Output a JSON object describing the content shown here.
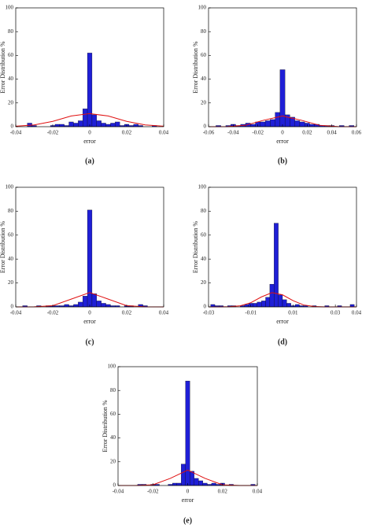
{
  "chart_data": [
    {
      "type": "histogram",
      "caption": "(a)",
      "xlabel": "error",
      "ylabel": "Error Distribution %",
      "color": "#1f1fd6",
      "bins": [
        -0.03625,
        -0.03375,
        -0.03125,
        -0.02875,
        -0.02625,
        -0.02375,
        -0.02125,
        -0.01875,
        -0.01625,
        -0.01375,
        -0.01125,
        -0.00875,
        -0.00625,
        -0.00375,
        -0.00125,
        0.00125,
        0.00375,
        0.00625,
        0.00875,
        0.01125,
        0.01375,
        0.01625,
        0.01875,
        0.02125,
        0.02375,
        0.02625,
        0.02875,
        0.03125,
        0.03375,
        0.03625,
        0.03875
      ],
      "values": [
        0,
        3,
        1,
        0,
        0,
        0,
        1,
        2,
        2,
        1,
        4,
        3,
        5,
        15,
        62,
        10,
        5,
        3,
        2,
        3,
        4,
        1,
        2,
        1,
        2,
        1,
        0,
        0,
        1,
        0
      ],
      "curve": {
        "x": [
          -0.04,
          -0.03,
          -0.02,
          -0.01,
          0,
          0.01,
          0.02,
          0.03,
          0.04
        ],
        "values": [
          0.4,
          1.5,
          4.5,
          9,
          11,
          9,
          4.5,
          1.5,
          0.4
        ],
        "color": "#e01010"
      },
      "xlim": [
        -0.04,
        0.04
      ],
      "ylim": [
        0,
        100
      ],
      "xticks": [
        -0.04,
        -0.02,
        0,
        0.02,
        0.04
      ],
      "yticks": [
        0,
        20,
        40,
        60,
        80,
        100
      ]
    },
    {
      "type": "histogram",
      "caption": "(b)",
      "xlabel": "error",
      "ylabel": "Error Distribution %",
      "color": "#1f1fd6",
      "bins": [
        -0.054,
        -0.05,
        -0.046,
        -0.042,
        -0.038,
        -0.034,
        -0.03,
        -0.026,
        -0.022,
        -0.018,
        -0.014,
        -0.01,
        -0.006,
        -0.002,
        0.002,
        0.006,
        0.01,
        0.014,
        0.018,
        0.022,
        0.026,
        0.03,
        0.034,
        0.038,
        0.042,
        0.046,
        0.05,
        0.054,
        0.058
      ],
      "values": [
        1,
        0,
        1,
        2,
        1,
        2,
        3,
        2,
        4,
        4,
        5,
        6,
        12,
        48,
        10,
        8,
        5,
        4,
        3,
        2,
        2,
        1,
        1,
        1,
        0,
        1,
        0,
        1
      ],
      "curve": {
        "x": [
          -0.06,
          -0.045,
          -0.03,
          -0.015,
          0,
          0.015,
          0.03,
          0.045,
          0.06
        ],
        "values": [
          0,
          0.1,
          1.2,
          5.5,
          9,
          5.5,
          1.2,
          0.1,
          0
        ],
        "color": "#e01010"
      },
      "xlim": [
        -0.06,
        0.06
      ],
      "ylim": [
        0,
        100
      ],
      "xticks": [
        -0.06,
        -0.04,
        -0.02,
        0,
        0.02,
        0.04,
        0.06
      ],
      "yticks": [
        0,
        20,
        40,
        60,
        80,
        100
      ]
    },
    {
      "type": "histogram",
      "caption": "(c)",
      "xlabel": "error",
      "ylabel": "Error Distribution %",
      "color": "#1f1fd6",
      "bins": [
        -0.03625,
        -0.03375,
        -0.03125,
        -0.02875,
        -0.02625,
        -0.02375,
        -0.02125,
        -0.01875,
        -0.01625,
        -0.01375,
        -0.01125,
        -0.00875,
        -0.00625,
        -0.00375,
        -0.00125,
        0.00125,
        0.00375,
        0.00625,
        0.00875,
        0.01125,
        0.01375,
        0.01625,
        0.01875,
        0.02125,
        0.02375,
        0.02625,
        0.02875,
        0.03125,
        0.03375,
        0.03625,
        0.03875
      ],
      "values": [
        1,
        0,
        0,
        1,
        0,
        1,
        1,
        1,
        1,
        2,
        1,
        2,
        4,
        9,
        81,
        11,
        5,
        3,
        2,
        1,
        1,
        0,
        1,
        1,
        0,
        2,
        1,
        0,
        0,
        0
      ],
      "curve": {
        "x": [
          -0.04,
          -0.03,
          -0.02,
          -0.01,
          0,
          0.01,
          0.02,
          0.03,
          0.04
        ],
        "values": [
          0,
          0.05,
          1,
          6.5,
          12,
          6.5,
          1,
          0.05,
          0
        ],
        "color": "#e01010"
      },
      "xlim": [
        -0.04,
        0.04
      ],
      "ylim": [
        0,
        100
      ],
      "xticks": [
        -0.04,
        -0.02,
        0,
        0.02,
        0.04
      ],
      "yticks": [
        0,
        20,
        40,
        60,
        80,
        100
      ]
    },
    {
      "type": "histogram",
      "caption": "(d)",
      "xlabel": "error",
      "ylabel": "Error Distribution %",
      "color": "#1f1fd6",
      "bins": [
        -0.029,
        -0.027,
        -0.025,
        -0.023,
        -0.021,
        -0.019,
        -0.017,
        -0.015,
        -0.013,
        -0.011,
        -0.009,
        -0.007,
        -0.005,
        -0.003,
        -0.001,
        0.001,
        0.003,
        0.005,
        0.007,
        0.009,
        0.011,
        0.013,
        0.015,
        0.017,
        0.019,
        0.021,
        0.023,
        0.025,
        0.027,
        0.029,
        0.031,
        0.033,
        0.035,
        0.037,
        0.039
      ],
      "values": [
        2,
        1,
        1,
        0,
        1,
        1,
        0,
        1,
        2,
        3,
        3,
        4,
        5,
        8,
        19,
        70,
        10,
        6,
        3,
        1,
        2,
        1,
        1,
        0,
        1,
        0,
        0,
        1,
        0,
        0,
        1,
        0,
        0,
        2
      ],
      "curve": {
        "x": [
          -0.03,
          -0.025,
          -0.02,
          -0.015,
          -0.01,
          -0.005,
          0,
          0.005,
          0.01,
          0.015,
          0.02,
          0.025,
          0.03,
          0.035,
          0.04
        ],
        "values": [
          0,
          0.01,
          0.13,
          0.88,
          3.5,
          8.3,
          11.9,
          10.1,
          5.2,
          1.6,
          0.3,
          0.03,
          0,
          0,
          0
        ],
        "color": "#e01010"
      },
      "xlim": [
        -0.03,
        0.04
      ],
      "ylim": [
        0,
        100
      ],
      "xticks": [
        -0.03,
        -0.01,
        0.01,
        0.03,
        0.04
      ],
      "yticks": [
        0,
        20,
        40,
        60,
        80,
        100
      ]
    },
    {
      "type": "histogram",
      "caption": "(e)",
      "xlabel": "error",
      "ylabel": "Error Distribution %",
      "color": "#1f1fd6",
      "bins": [
        -0.03625,
        -0.03375,
        -0.03125,
        -0.02875,
        -0.02625,
        -0.02375,
        -0.02125,
        -0.01875,
        -0.01625,
        -0.01375,
        -0.01125,
        -0.00875,
        -0.00625,
        -0.00375,
        -0.00125,
        0.00125,
        0.00375,
        0.00625,
        0.00875,
        0.01125,
        0.01375,
        0.01625,
        0.01875,
        0.02125,
        0.02375,
        0.02625,
        0.02875,
        0.03125,
        0.03375,
        0.03625,
        0.03875
      ],
      "values": [
        0,
        0,
        0,
        1,
        1,
        0,
        1,
        1,
        0,
        0,
        1,
        2,
        2,
        18,
        88,
        12,
        6,
        4,
        2,
        1,
        2,
        1,
        2,
        0,
        1,
        0,
        0,
        0,
        0,
        1
      ],
      "curve": {
        "x": [
          -0.04,
          -0.03,
          -0.02,
          -0.01,
          0,
          0.01,
          0.02,
          0.03,
          0.04
        ],
        "values": [
          0,
          0.01,
          0.6,
          6,
          13,
          6,
          0.6,
          0.01,
          0
        ],
        "color": "#e01010"
      },
      "xlim": [
        -0.04,
        0.04
      ],
      "ylim": [
        0,
        100
      ],
      "xticks": [
        -0.04,
        -0.02,
        0,
        0.02,
        0.04
      ],
      "yticks": [
        0,
        20,
        40,
        60,
        80,
        100
      ]
    }
  ]
}
